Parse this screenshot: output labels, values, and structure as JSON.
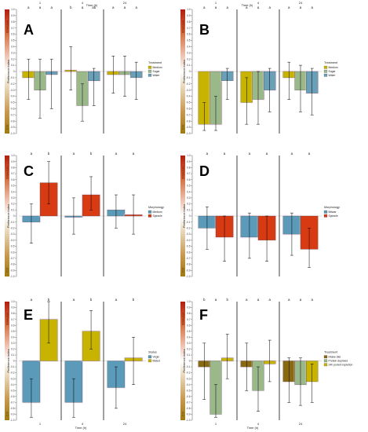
{
  "figure": {
    "top_title": "Time (h)",
    "bottom_title": "Time (h)",
    "ylabel": "Preference index",
    "side_top": "Stimulus",
    "side_bottom": "Ctrl",
    "yticks": [
      "1.0",
      "0.9",
      "0.8",
      "0.7",
      "0.6",
      "0.5",
      "0.4",
      "0.3",
      "0.2",
      "0.1",
      "0",
      "-0.1",
      "-0.2",
      "-0.3",
      "-0.4",
      "-0.5",
      "-0.6",
      "-0.7",
      "-0.8",
      "-0.9",
      "-1.0"
    ],
    "time_labels": [
      "1",
      "4",
      "24"
    ]
  },
  "chart_data": [
    {
      "panel": "A",
      "type": "bar",
      "ylim": [
        -1,
        1
      ],
      "legend_placement": "right",
      "show_top_time": true,
      "show_bottom_time": false,
      "top_time_labels": [
        "1",
        "4",
        "24"
      ],
      "legend_title": "Treatment",
      "series": [
        {
          "name": "Medium",
          "color": "#c8b400"
        },
        {
          "name": "Sugar",
          "color": "#9bb88a"
        },
        {
          "name": "Water",
          "color": "#6a9fb8"
        }
      ],
      "sig_letters": [
        [
          "a",
          "a",
          "a"
        ],
        [
          "b",
          "a",
          "ab"
        ],
        [
          "a",
          "a",
          "a"
        ]
      ],
      "values": [
        [
          -0.1,
          -0.3,
          -0.05
        ],
        [
          0.02,
          -0.55,
          -0.15
        ],
        [
          -0.05,
          -0.05,
          -0.1
        ]
      ],
      "err_low": [
        [
          -0.45,
          -0.75,
          -0.6
        ],
        [
          -0.3,
          -0.8,
          -0.55
        ],
        [
          -0.35,
          -0.4,
          -0.45
        ]
      ],
      "err_high": [
        [
          0.2,
          0.2,
          0.2
        ],
        [
          0.4,
          -0.2,
          0.05
        ],
        [
          0.25,
          0.25,
          0.15
        ]
      ]
    },
    {
      "panel": "B",
      "type": "bar",
      "ylim": [
        -1,
        1
      ],
      "legend_placement": "right",
      "show_top_time": true,
      "show_bottom_time": false,
      "top_time_labels": [
        "1",
        "4",
        "24"
      ],
      "legend_title": "Treatment",
      "series": [
        {
          "name": "Medium",
          "color": "#c8b400"
        },
        {
          "name": "Sugar",
          "color": "#9bb88a"
        },
        {
          "name": "Water",
          "color": "#6a9fb8"
        }
      ],
      "sig_letters": [
        [
          "a",
          "a",
          "a"
        ],
        [
          "a",
          "a",
          "a"
        ],
        [
          "a",
          "a",
          "a"
        ]
      ],
      "values": [
        [
          -0.85,
          -0.85,
          -0.15
        ],
        [
          -0.5,
          -0.45,
          -0.3
        ],
        [
          -0.1,
          -0.3,
          -0.35
        ]
      ],
      "err_low": [
        [
          -0.95,
          -0.95,
          -0.45
        ],
        [
          -0.85,
          -0.85,
          -0.65
        ],
        [
          -0.45,
          -0.65,
          -0.7
        ]
      ],
      "err_high": [
        [
          -0.5,
          -0.4,
          0.05
        ],
        [
          -0.1,
          0.0,
          0.05
        ],
        [
          0.15,
          0.1,
          0.05
        ]
      ]
    },
    {
      "panel": "C",
      "type": "bar",
      "ylim": [
        -1,
        1
      ],
      "legend_placement": "right",
      "show_top_time": false,
      "show_bottom_time": false,
      "legend_title": "Morphology",
      "series": [
        {
          "name": "Medium",
          "color": "#5b9ab8"
        },
        {
          "name": "Spiracle",
          "color": "#d83a14"
        }
      ],
      "sig_letters": [
        [
          "a",
          "b"
        ],
        [
          "a",
          "b"
        ],
        [
          "a",
          "a"
        ]
      ],
      "values": [
        [
          -0.1,
          0.55
        ],
        [
          -0.02,
          0.35
        ],
        [
          0.1,
          0.02
        ]
      ],
      "err_low": [
        [
          -0.45,
          0.2
        ],
        [
          -0.3,
          0.1
        ],
        [
          -0.2,
          -0.3
        ]
      ],
      "err_high": [
        [
          0.2,
          0.9
        ],
        [
          0.3,
          0.65
        ],
        [
          0.35,
          0.35
        ]
      ]
    },
    {
      "panel": "D",
      "type": "bar",
      "ylim": [
        -1,
        1
      ],
      "legend_placement": "right",
      "show_top_time": false,
      "show_bottom_time": false,
      "legend_title": "Morphology",
      "series": [
        {
          "name": "Mitwar",
          "color": "#5b9ab8"
        },
        {
          "name": "Spiracle",
          "color": "#d83a14"
        }
      ],
      "sig_letters": [
        [
          "a",
          "a"
        ],
        [
          "a",
          "a"
        ],
        [
          "a",
          "a"
        ]
      ],
      "values": [
        [
          -0.2,
          -0.35
        ],
        [
          -0.35,
          -0.4
        ],
        [
          -0.3,
          -0.55
        ]
      ],
      "err_low": [
        [
          -0.55,
          -0.75
        ],
        [
          -0.7,
          -0.75
        ],
        [
          -0.65,
          -0.85
        ]
      ],
      "err_high": [
        [
          0.15,
          0.0
        ],
        [
          0.05,
          0.0
        ],
        [
          0.05,
          -0.2
        ]
      ]
    },
    {
      "panel": "E",
      "type": "bar",
      "ylim": [
        -1,
        1
      ],
      "legend_placement": "right",
      "show_top_time": false,
      "show_bottom_time": true,
      "bottom_time_labels": [
        "1",
        "4",
        "24"
      ],
      "legend_title": "Status",
      "series": [
        {
          "name": "Virgin",
          "color": "#5b9ab8"
        },
        {
          "name": "Mated",
          "color": "#c8b400"
        }
      ],
      "sig_letters": [
        [
          "a",
          "b"
        ],
        [
          "a",
          "b"
        ],
        [
          "a",
          "b"
        ]
      ],
      "values": [
        [
          -0.7,
          0.7
        ],
        [
          -0.7,
          0.5
        ],
        [
          -0.45,
          0.05
        ]
      ],
      "err_low": [
        [
          -0.95,
          0.3
        ],
        [
          -0.95,
          0.2
        ],
        [
          -0.8,
          -0.4
        ]
      ],
      "err_high": [
        [
          -0.3,
          1.0
        ],
        [
          -0.3,
          0.85
        ],
        [
          -0.1,
          0.4
        ]
      ]
    },
    {
      "panel": "F",
      "type": "bar",
      "ylim": [
        -1,
        1
      ],
      "legend_placement": "right",
      "show_top_time": false,
      "show_bottom_time": true,
      "bottom_time_labels": [
        "1",
        "4",
        "24"
      ],
      "legend_title": "Treatment",
      "series": [
        {
          "name": "Intake diet",
          "color": "#8a6a10"
        },
        {
          "name": "Protein deprived",
          "color": "#9bb88a"
        },
        {
          "name": "24h protein repletion",
          "color": "#c8b400"
        }
      ],
      "sig_letters": [
        [
          "b",
          "a",
          "b"
        ],
        [
          "a",
          "a",
          "a"
        ],
        [
          "a",
          "a",
          "a"
        ]
      ],
      "values": [
        [
          -0.1,
          -0.9,
          0.05
        ],
        [
          -0.1,
          -0.5,
          -0.05
        ],
        [
          -0.35,
          -0.4,
          -0.35
        ]
      ],
      "err_low": [
        [
          -0.65,
          -0.95,
          -0.3
        ],
        [
          -0.5,
          -0.85,
          -0.35
        ],
        [
          -0.7,
          -0.75,
          -0.7
        ]
      ],
      "err_high": [
        [
          0.3,
          -0.4,
          0.45
        ],
        [
          0.3,
          -0.1,
          0.35
        ],
        [
          0.05,
          0.05,
          -0.05
        ]
      ]
    }
  ]
}
